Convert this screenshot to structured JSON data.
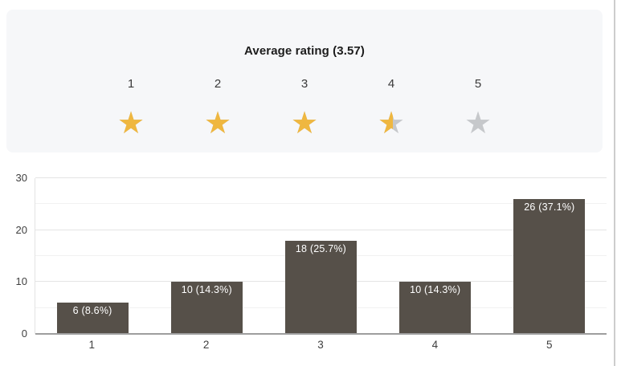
{
  "rating_summary": {
    "title": "Average rating (3.57)",
    "average_value": 3.57,
    "max_rating": 5,
    "levels": [
      "1",
      "2",
      "3",
      "4",
      "5"
    ],
    "star_fill_fractions": [
      1,
      1,
      1,
      0.57,
      0
    ]
  },
  "chart_data": {
    "type": "bar",
    "title": "",
    "xlabel": "",
    "ylabel": "",
    "categories": [
      "1",
      "2",
      "3",
      "4",
      "5"
    ],
    "values": [
      6,
      10,
      18,
      10,
      26
    ],
    "bar_labels": [
      "6 (8.6%)",
      "10 (14.3%)",
      "18 (25.7%)",
      "10 (14.3%)",
      "26 (37.1%)"
    ],
    "ylim": [
      0,
      30
    ],
    "yticks": [
      0,
      10,
      20,
      30
    ],
    "minor_gridlines": [
      5,
      15,
      25
    ],
    "grid": true,
    "legend": "none"
  },
  "colors": {
    "panel_background": "#F6F7F9",
    "title_text": "#1C1C1C",
    "level_text": "#3A3A3A",
    "star_active": "#EFB740",
    "star_inactive": "#C6C8CB",
    "bar_fill": "#565049",
    "bar_label_text": "#FFFFFF",
    "gridline_major": "#E4E4E4",
    "gridline_minor": "#F1F1F1",
    "axis_baseline": "#9E9E9E",
    "axis_text": "#3F3F3F",
    "edge_divider": "#CDCDCD"
  },
  "icons": {
    "star_glyph": "★"
  }
}
